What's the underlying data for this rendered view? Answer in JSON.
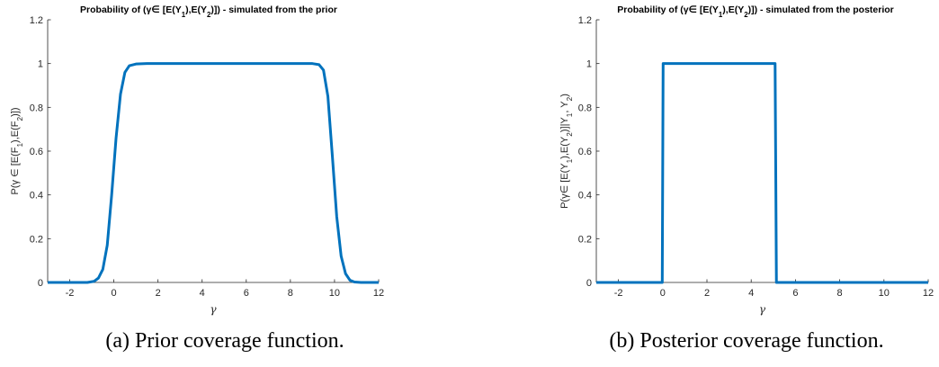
{
  "colors": {
    "series": "#0072BD",
    "axis": "#262626"
  },
  "captions": {
    "a": "(a) Prior coverage function.",
    "b": "(b) Posterior coverage function."
  },
  "chart_data": [
    {
      "type": "line",
      "title": "Probability of (γ∈ [E(Y₁),E(Y₂)]) - simulated from the prior",
      "xlabel": "γ",
      "ylabel": "P(γ ∈ [E(F₁),E(F₂)])",
      "xlim": [
        -3,
        12
      ],
      "ylim": [
        0,
        1.2
      ],
      "xticks": [
        -2,
        0,
        2,
        4,
        6,
        8,
        10,
        12
      ],
      "yticks": [
        0,
        0.2,
        0.4,
        0.6,
        0.8,
        1,
        1.2
      ],
      "grid": false,
      "series": [
        {
          "x": [
            -3,
            -1.2,
            -0.9,
            -0.7,
            -0.5,
            -0.3,
            -0.1,
            0.1,
            0.3,
            0.5,
            0.7,
            1.0,
            1.5,
            2,
            4,
            6,
            8,
            9.0,
            9.3,
            9.5,
            9.7,
            9.9,
            10.1,
            10.3,
            10.5,
            10.7,
            10.9,
            11.2,
            12
          ],
          "y": [
            0,
            0,
            0.005,
            0.02,
            0.06,
            0.17,
            0.4,
            0.66,
            0.86,
            0.96,
            0.99,
            0.998,
            1,
            1,
            1,
            1,
            1,
            1,
            0.995,
            0.97,
            0.85,
            0.58,
            0.3,
            0.12,
            0.04,
            0.01,
            0.002,
            0,
            0
          ]
        }
      ]
    },
    {
      "type": "line",
      "title": "Probability of (γ∈ [E(Y₁),E(Y₂)]) - simulated from the posterior",
      "xlabel": "γ",
      "ylabel": "P(γ∈ [E(Y₁),E(Y₂)]|Y₁, Y₂)",
      "xlim": [
        -3,
        12
      ],
      "ylim": [
        0,
        1.2
      ],
      "xticks": [
        -2,
        0,
        2,
        4,
        6,
        8,
        10,
        12
      ],
      "yticks": [
        0,
        0.2,
        0.4,
        0.6,
        0.8,
        1,
        1.2
      ],
      "grid": false,
      "series": [
        {
          "x": [
            -3,
            -0.02,
            0.02,
            5.08,
            5.14,
            12
          ],
          "y": [
            0,
            0,
            1,
            1,
            0,
            0
          ]
        }
      ]
    }
  ]
}
